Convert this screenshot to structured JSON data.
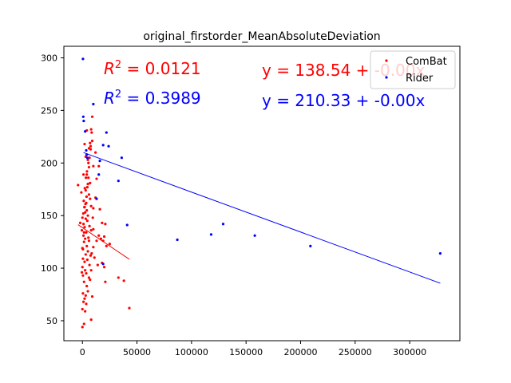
{
  "chart_data": {
    "type": "scatter",
    "title": "original_firstorder_MeanAbsoluteDeviation",
    "xlabel": "",
    "ylabel": "",
    "xlim": [
      -17000,
      346000
    ],
    "ylim": [
      31,
      311
    ],
    "x_ticks": [
      0,
      50000,
      100000,
      150000,
      200000,
      250000,
      300000
    ],
    "x_tick_labels": [
      "0",
      "50000",
      "100000",
      "150000",
      "200000",
      "250000",
      "300000"
    ],
    "y_ticks": [
      50,
      100,
      150,
      200,
      250,
      300
    ],
    "y_tick_labels": [
      "50",
      "100",
      "150",
      "200",
      "250",
      "300"
    ],
    "grid": false,
    "legend_position": "top-right",
    "series": [
      {
        "name": "ComBat",
        "color": "#ff0000",
        "marker": "dot",
        "x": [
          -4000,
          -2000,
          -1000,
          -500,
          0,
          0,
          0,
          500,
          500,
          500,
          800,
          1000,
          1000,
          1200,
          1500,
          1500,
          1500,
          1800,
          2000,
          2000,
          2000,
          2200,
          2500,
          2500,
          2500,
          2800,
          3000,
          3000,
          3000,
          3200,
          3500,
          3500,
          3500,
          3800,
          4000,
          4000,
          4000,
          4200,
          4500,
          4500,
          5000,
          5000,
          5000,
          5500,
          5500,
          6000,
          6000,
          6000,
          6500,
          6500,
          7000,
          7000,
          7500,
          7500,
          8000,
          8000,
          8000,
          8500,
          9000,
          9000,
          10000,
          10000,
          10000,
          11000,
          12000,
          12000,
          13000,
          13000,
          14000,
          15000,
          15000,
          16000,
          17000,
          18000,
          18000,
          19000,
          20000,
          20000,
          21000,
          21000,
          22000,
          25000,
          33000,
          38000,
          43000,
          -500,
          0,
          1000,
          2000,
          3000,
          4000,
          5000,
          6000,
          7000,
          8000,
          9000,
          500,
          1500,
          2500,
          3500,
          4500,
          5500,
          6500,
          7500,
          8500,
          9500,
          0,
          1000,
          2000,
          3000,
          4000,
          5000,
          6000,
          7000,
          8000,
          10000
        ],
        "y": [
          179,
          143,
          172,
          136,
          44,
          61,
          101,
          76,
          93,
          118,
          152,
          68,
          131,
          164,
          47,
          87,
          125,
          158,
          71,
          106,
          139,
          176,
          59,
          98,
          128,
          161,
          74,
          113,
          147,
          186,
          66,
          95,
          134,
          168,
          83,
          121,
          155,
          192,
          108,
          145,
          78,
          116,
          150,
          200,
          129,
          91,
          126,
          170,
          103,
          140,
          89,
          181,
          112,
          216,
          51,
          98,
          136,
          229,
          73,
          244,
          120,
          157,
          197,
          110,
          167,
          210,
          126,
          185,
          103,
          131,
          197,
          156,
          128,
          105,
          143,
          126,
          101,
          130,
          87,
          142,
          121,
          123,
          91,
          88,
          62,
          96,
          119,
          142,
          158,
          174,
          189,
          203,
          214,
          219,
          232,
          221,
          109,
          134,
          153,
          162,
          177,
          186,
          205,
          213,
          114,
          148,
          148,
          189,
          218,
          206,
          231,
          180,
          196,
          166,
          159,
          137
        ],
        "fit": {
          "intercept": 138.54,
          "slope": -0.0007,
          "x_range": [
            -4000,
            43000
          ]
        },
        "r2_label": "R^2 = 0.0121",
        "eq_label": "y = 138.54 + -0.00x"
      },
      {
        "name": "Rider",
        "color": "#0000ff",
        "marker": "dot",
        "x": [
          500,
          800,
          1200,
          2500,
          3500,
          4000,
          4500,
          10000,
          13000,
          15000,
          16000,
          19000,
          19000,
          22000,
          24000,
          33000,
          36000,
          41000,
          87000,
          118000,
          129000,
          158000,
          209000,
          328000
        ],
        "y": [
          299,
          244,
          240,
          230,
          212,
          208,
          205,
          256,
          166,
          189,
          202,
          217,
          104,
          229,
          216,
          183,
          205,
          141,
          127,
          132,
          142,
          131,
          121,
          114
        ],
        "fit": {
          "intercept": 210.33,
          "slope": -0.00038,
          "x_range": [
            1000,
            328000
          ]
        },
        "r2_label": "R^2 = 0.3989",
        "eq_label": "y = 210.33 + -0.00x"
      }
    ]
  },
  "annotations": {
    "combat_r2_prefix": "R",
    "combat_r2_sup": "2",
    "combat_r2_value": " = 0.0121",
    "combat_eq": "y = 138.54 + -0.00x",
    "rider_r2_prefix": "R",
    "rider_r2_sup": "2",
    "rider_r2_value": " = 0.3989",
    "rider_eq": "y = 210.33 + -0.00x"
  },
  "legend": {
    "items": [
      {
        "label": "ComBat",
        "color": "#ff0000"
      },
      {
        "label": "Rider",
        "color": "#0000ff"
      }
    ]
  }
}
